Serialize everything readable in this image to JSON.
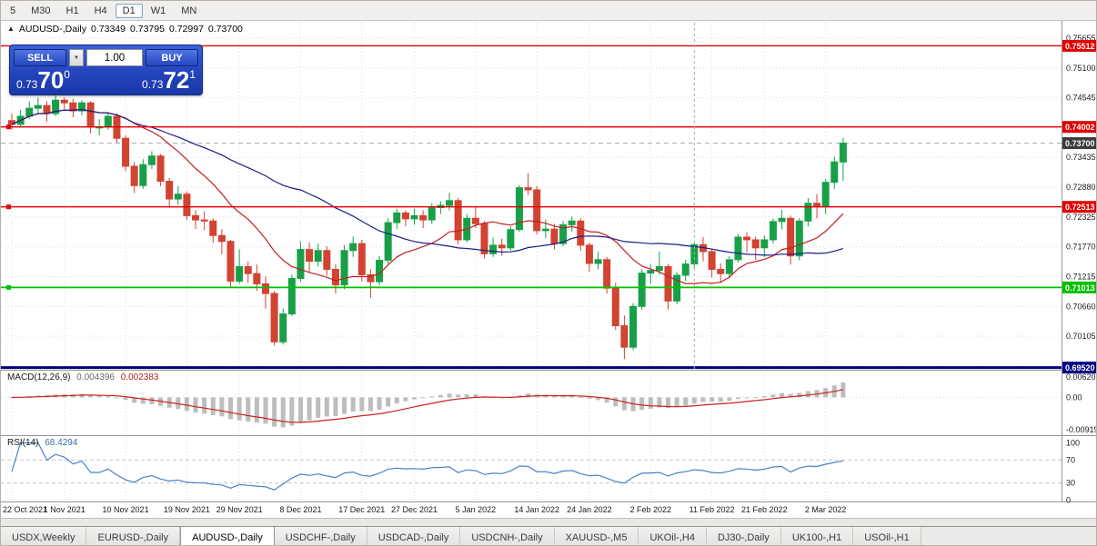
{
  "timeframe_toolbar": {
    "buttons": [
      {
        "label": "5",
        "active": false
      },
      {
        "label": "M30",
        "active": false
      },
      {
        "label": "H1",
        "active": false
      },
      {
        "label": "H4",
        "active": false
      },
      {
        "label": "D1",
        "active": true
      },
      {
        "label": "W1",
        "active": false
      },
      {
        "label": "MN",
        "active": false
      }
    ]
  },
  "chart_header": {
    "collapse_icon": "▲",
    "symbol": "AUDUSD-,Daily",
    "open": "0.73349",
    "high": "0.73795",
    "low": "0.72997",
    "close": "0.73700"
  },
  "trade_panel": {
    "sell_label": "SELL",
    "buy_label": "BUY",
    "volume": "1.00",
    "dropdown_icon": "▼",
    "sell_price": {
      "prefix": "0.73",
      "big": "70",
      "sup": "0"
    },
    "buy_price": {
      "prefix": "0.73",
      "big": "72",
      "sup": "1"
    }
  },
  "indicators": {
    "macd": {
      "title": "MACD(12,26,9)",
      "value_main": "0.004396",
      "value_signal": "0.002383",
      "params": {
        "fast": 12,
        "slow": 26,
        "signal": 9
      },
      "scale": [
        {
          "label": "0.00620",
          "value": 0.0062
        },
        {
          "label": "0.00",
          "value": 0
        },
        {
          "label": "-0.00919",
          "value": -0.00919
        }
      ]
    },
    "rsi": {
      "title": "RSI(14)",
      "value": "68.4294",
      "period": 14,
      "levels": [
        70,
        30
      ],
      "scale": [
        {
          "label": "100",
          "value": 100
        },
        {
          "label": "70",
          "value": 70
        },
        {
          "label": "30",
          "value": 30
        },
        {
          "label": "0",
          "value": 0
        }
      ]
    }
  },
  "chart_data": {
    "type": "candlestick",
    "title": "AUDUSD-,Daily",
    "ylim": [
      0.6947,
      0.7576
    ],
    "grid": true,
    "y_ticks": [
      {
        "label": "0.75655",
        "value": 0.75655
      },
      {
        "label": "0.75100",
        "value": 0.751
      },
      {
        "label": "0.74545",
        "value": 0.74545
      },
      {
        "label": "0.73990",
        "value": 0.7399
      },
      {
        "label": "0.73435",
        "value": 0.73435
      },
      {
        "label": "0.72880",
        "value": 0.7288
      },
      {
        "label": "0.72325",
        "value": 0.72325
      },
      {
        "label": "0.71770",
        "value": 0.7177
      },
      {
        "label": "0.71215",
        "value": 0.71215
      },
      {
        "label": "0.70660",
        "value": 0.7066
      },
      {
        "label": "0.70105",
        "value": 0.70105
      },
      {
        "label": "0.69550",
        "value": 0.6955
      }
    ],
    "date_labels": [
      {
        "index": 0,
        "label": "22 Oct 2021"
      },
      {
        "index": 6,
        "label": "1 Nov 2021"
      },
      {
        "index": 13,
        "label": "10 Nov 2021"
      },
      {
        "index": 20,
        "label": "19 Nov 2021"
      },
      {
        "index": 26,
        "label": "29 Nov 2021"
      },
      {
        "index": 33,
        "label": "8 Dec 2021"
      },
      {
        "index": 40,
        "label": "17 Dec 2021"
      },
      {
        "index": 46,
        "label": "27 Dec 2021"
      },
      {
        "index": 53,
        "label": "5 Jan 2022"
      },
      {
        "index": 60,
        "label": "14 Jan 2022"
      },
      {
        "index": 66,
        "label": "24 Jan 2022"
      },
      {
        "index": 73,
        "label": "2 Feb 2022"
      },
      {
        "index": 80,
        "label": "11 Feb 2022"
      },
      {
        "index": 86,
        "label": "21 Feb 2022"
      },
      {
        "index": 93,
        "label": "2 Mar 2022"
      }
    ],
    "levels": [
      {
        "type": "hline",
        "price": 0.75512,
        "badge": "0.75512",
        "color": "#e00000",
        "width": 1.4,
        "handle": false
      },
      {
        "type": "hline",
        "price": 0.74002,
        "badge": "0.74002",
        "color": "#e00000",
        "width": 1.4,
        "handle": true
      },
      {
        "type": "hline",
        "price": 0.72513,
        "badge": "0.72513",
        "color": "#e00000",
        "width": 1.4,
        "handle": true
      },
      {
        "type": "hline",
        "price": 0.71013,
        "badge": "0.71013",
        "color": "#00c000",
        "width": 1.8,
        "handle": true
      },
      {
        "type": "hline",
        "price": 0.6952,
        "badge": "0.69520",
        "color": "#000080",
        "width": 3,
        "handle": false
      },
      {
        "type": "vline",
        "index": 78,
        "color": "#aaaaaa"
      }
    ],
    "current_price": {
      "value": 0.737,
      "badge": "0.73700",
      "color": "#3c3c3c"
    },
    "moving_averages": [
      {
        "name": "ma-fast",
        "period": 13,
        "color": "#c22020"
      },
      {
        "name": "ma-slow",
        "period": 34,
        "color": "#1c1c86"
      }
    ],
    "ohlc": [
      [
        0.7412,
        0.7425,
        0.7395,
        0.7405
      ],
      [
        0.7405,
        0.7432,
        0.74,
        0.742
      ],
      [
        0.742,
        0.7448,
        0.7415,
        0.7435
      ],
      [
        0.7435,
        0.7455,
        0.7425,
        0.744
      ],
      [
        0.744,
        0.7448,
        0.741,
        0.7425
      ],
      [
        0.7425,
        0.7458,
        0.742,
        0.745
      ],
      [
        0.745,
        0.7455,
        0.7433,
        0.7445
      ],
      [
        0.7445,
        0.7453,
        0.7418,
        0.743
      ],
      [
        0.743,
        0.745,
        0.7422,
        0.7445
      ],
      [
        0.7445,
        0.7448,
        0.7388,
        0.74
      ],
      [
        0.74,
        0.7415,
        0.7385,
        0.74
      ],
      [
        0.74,
        0.7428,
        0.7395,
        0.742
      ],
      [
        0.742,
        0.7425,
        0.737,
        0.7379
      ],
      [
        0.7379,
        0.7385,
        0.7318,
        0.7327
      ],
      [
        0.7327,
        0.7335,
        0.7277,
        0.7291
      ],
      [
        0.7291,
        0.734,
        0.7285,
        0.733
      ],
      [
        0.733,
        0.7355,
        0.7322,
        0.7346
      ],
      [
        0.7346,
        0.735,
        0.729,
        0.7299
      ],
      [
        0.7299,
        0.7305,
        0.725,
        0.7266
      ],
      [
        0.7266,
        0.729,
        0.7255,
        0.7275
      ],
      [
        0.7275,
        0.728,
        0.7227,
        0.7235
      ],
      [
        0.7235,
        0.7245,
        0.721,
        0.7227
      ],
      [
        0.7227,
        0.7243,
        0.7208,
        0.7225
      ],
      [
        0.7225,
        0.723,
        0.7184,
        0.7198
      ],
      [
        0.7198,
        0.721,
        0.7163,
        0.7187
      ],
      [
        0.7187,
        0.719,
        0.71,
        0.7113
      ],
      [
        0.7113,
        0.7172,
        0.7108,
        0.714
      ],
      [
        0.714,
        0.715,
        0.711,
        0.7127
      ],
      [
        0.7127,
        0.7144,
        0.7095,
        0.7108
      ],
      [
        0.7108,
        0.7122,
        0.7062,
        0.709
      ],
      [
        0.709,
        0.7095,
        0.6993,
        0.7
      ],
      [
        0.7,
        0.7062,
        0.6995,
        0.7052
      ],
      [
        0.7052,
        0.7125,
        0.7048,
        0.7118
      ],
      [
        0.7118,
        0.7187,
        0.7112,
        0.7172
      ],
      [
        0.7172,
        0.7185,
        0.713,
        0.715
      ],
      [
        0.715,
        0.7183,
        0.714,
        0.717
      ],
      [
        0.717,
        0.7178,
        0.7123,
        0.7135
      ],
      [
        0.7135,
        0.7145,
        0.709,
        0.7106
      ],
      [
        0.7106,
        0.718,
        0.7098,
        0.717
      ],
      [
        0.717,
        0.7196,
        0.7158,
        0.7183
      ],
      [
        0.7183,
        0.719,
        0.7112,
        0.7125
      ],
      [
        0.7125,
        0.7135,
        0.7082,
        0.7112
      ],
      [
        0.7112,
        0.716,
        0.7105,
        0.7152
      ],
      [
        0.7152,
        0.723,
        0.7145,
        0.7222
      ],
      [
        0.7222,
        0.7248,
        0.721,
        0.724
      ],
      [
        0.724,
        0.7245,
        0.7215,
        0.7229
      ],
      [
        0.7229,
        0.7248,
        0.7218,
        0.7235
      ],
      [
        0.7235,
        0.7245,
        0.7212,
        0.7227
      ],
      [
        0.7227,
        0.7258,
        0.722,
        0.725
      ],
      [
        0.725,
        0.7262,
        0.7238,
        0.7254
      ],
      [
        0.7254,
        0.7278,
        0.7245,
        0.7263
      ],
      [
        0.7263,
        0.7268,
        0.7182,
        0.719
      ],
      [
        0.719,
        0.7238,
        0.7185,
        0.723
      ],
      [
        0.723,
        0.725,
        0.7212,
        0.722
      ],
      [
        0.722,
        0.7225,
        0.7155,
        0.7164
      ],
      [
        0.7164,
        0.7194,
        0.7158,
        0.718
      ],
      [
        0.718,
        0.7192,
        0.716,
        0.7175
      ],
      [
        0.7175,
        0.7215,
        0.717,
        0.7209
      ],
      [
        0.7209,
        0.7292,
        0.7205,
        0.7287
      ],
      [
        0.7287,
        0.7314,
        0.7273,
        0.7283
      ],
      [
        0.7283,
        0.729,
        0.72,
        0.7207
      ],
      [
        0.7207,
        0.7228,
        0.7193,
        0.721
      ],
      [
        0.721,
        0.722,
        0.7172,
        0.7183
      ],
      [
        0.7183,
        0.7225,
        0.7178,
        0.7218
      ],
      [
        0.7218,
        0.7233,
        0.7205,
        0.7225
      ],
      [
        0.7225,
        0.723,
        0.717,
        0.718
      ],
      [
        0.718,
        0.7185,
        0.713,
        0.7146
      ],
      [
        0.7146,
        0.7168,
        0.7135,
        0.7153
      ],
      [
        0.7153,
        0.7158,
        0.709,
        0.71
      ],
      [
        0.71,
        0.711,
        0.7022,
        0.703
      ],
      [
        0.703,
        0.7049,
        0.6968,
        0.699
      ],
      [
        0.699,
        0.7072,
        0.6985,
        0.7066
      ],
      [
        0.7066,
        0.7135,
        0.706,
        0.7128
      ],
      [
        0.7128,
        0.7145,
        0.7108,
        0.7133
      ],
      [
        0.7133,
        0.7168,
        0.7125,
        0.714
      ],
      [
        0.714,
        0.7145,
        0.706,
        0.7076
      ],
      [
        0.7076,
        0.713,
        0.707,
        0.7124
      ],
      [
        0.7124,
        0.7153,
        0.7113,
        0.7145
      ],
      [
        0.7145,
        0.7185,
        0.7138,
        0.7181
      ],
      [
        0.7181,
        0.7195,
        0.715,
        0.7168
      ],
      [
        0.7168,
        0.7172,
        0.712,
        0.7135
      ],
      [
        0.7135,
        0.7146,
        0.711,
        0.7127
      ],
      [
        0.7127,
        0.716,
        0.7118,
        0.7153
      ],
      [
        0.7153,
        0.7201,
        0.7148,
        0.7195
      ],
      [
        0.7195,
        0.7204,
        0.7166,
        0.719
      ],
      [
        0.719,
        0.7196,
        0.7152,
        0.7175
      ],
      [
        0.7175,
        0.7198,
        0.7158,
        0.719
      ],
      [
        0.719,
        0.723,
        0.7183,
        0.7224
      ],
      [
        0.7224,
        0.7246,
        0.721,
        0.723
      ],
      [
        0.723,
        0.7235,
        0.7144,
        0.716
      ],
      [
        0.716,
        0.723,
        0.7152,
        0.7225
      ],
      [
        0.7225,
        0.7268,
        0.7215,
        0.7258
      ],
      [
        0.7258,
        0.7275,
        0.723,
        0.7253
      ],
      [
        0.7253,
        0.7303,
        0.7238,
        0.7297
      ],
      [
        0.7297,
        0.7345,
        0.7285,
        0.7335
      ],
      [
        0.73349,
        0.73795,
        0.72997,
        0.737
      ]
    ]
  },
  "tabs": {
    "items": [
      {
        "label": "USDX,Weekly",
        "active": false
      },
      {
        "label": "EURUSD-,Daily",
        "active": false
      },
      {
        "label": "AUDUSD-,Daily",
        "active": true
      },
      {
        "label": "USDCHF-,Daily",
        "active": false
      },
      {
        "label": "USDCAD-,Daily",
        "active": false
      },
      {
        "label": "USDCNH-,Daily",
        "active": false
      },
      {
        "label": "XAUUSD-,M5",
        "active": false
      },
      {
        "label": "UKOil-,H4",
        "active": false
      },
      {
        "label": "DJ30-,Daily",
        "active": false
      },
      {
        "label": "UK100-,H1",
        "active": false
      },
      {
        "label": "USOil-,H1",
        "active": false
      }
    ]
  },
  "colors": {
    "bull": "#18a048",
    "bear": "#d24332",
    "ma_fast": "#c22020",
    "ma_slow": "#1c1c86",
    "rsi": "#4a82c8",
    "macd_hist": "#bdbdbd",
    "macd_signal": "#cc2222",
    "grid": "#dcdcdc",
    "badge_current": "#3c3c3c",
    "bid_line": "#9a9a9a"
  }
}
